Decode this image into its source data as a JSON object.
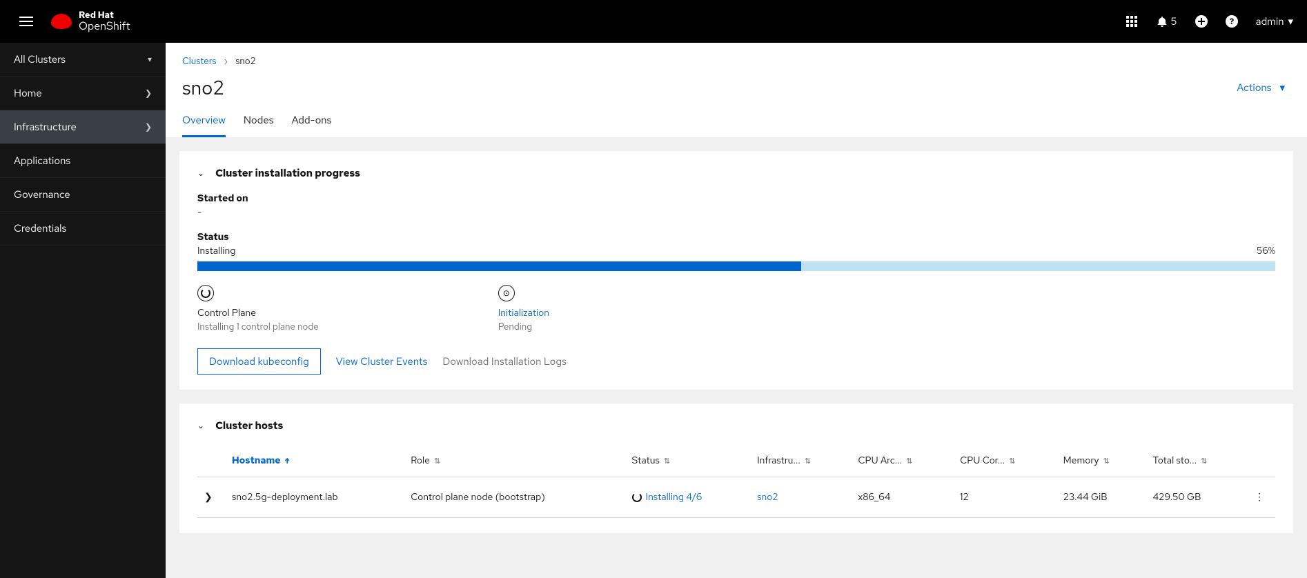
{
  "brand": {
    "line1": "Red Hat",
    "line2": "OpenShift"
  },
  "topbar": {
    "notification_count": "5",
    "user": "admin"
  },
  "sidebar": {
    "context": {
      "label": "All Clusters"
    },
    "items": [
      {
        "label": "Home",
        "expandable": true
      },
      {
        "label": "Infrastructure",
        "expandable": true,
        "active": true
      },
      {
        "label": "Applications"
      },
      {
        "label": "Governance"
      },
      {
        "label": "Credentials"
      }
    ]
  },
  "breadcrumb": {
    "parent": "Clusters",
    "current": "sno2"
  },
  "page": {
    "title": "sno2",
    "actions_label": "Actions"
  },
  "tabs": {
    "overview": "Overview",
    "nodes": "Nodes",
    "addons": "Add-ons"
  },
  "progress_card": {
    "title": "Cluster installation progress",
    "started_label": "Started on",
    "started_value": "-",
    "status_label": "Status",
    "status_value": "Installing",
    "percent": 56,
    "percent_label": "56%",
    "stages": {
      "control": {
        "name": "Control Plane",
        "sub": "Installing 1 control plane node"
      },
      "init": {
        "name": "Initialization",
        "sub": "Pending"
      }
    },
    "actions": {
      "kubeconfig": "Download kubeconfig",
      "events": "View Cluster Events",
      "logs": "Download Installation Logs"
    }
  },
  "hosts_card": {
    "title": "Cluster hosts",
    "columns": {
      "hostname": "Hostname",
      "role": "Role",
      "status": "Status",
      "infra": "Infrastru...",
      "cpu_arch": "CPU Arc...",
      "cpu_cores": "CPU Cor...",
      "memory": "Memory",
      "storage": "Total sto..."
    },
    "row": {
      "hostname": "sno2.5g-deployment.lab",
      "role": "Control plane node (bootstrap)",
      "status": "Installing 4/6",
      "infra": "sno2",
      "cpu_arch": "x86_64",
      "cpu_cores": "12",
      "memory": "23.44 GiB",
      "storage": "429.50 GB"
    }
  },
  "colors": {
    "accent": "#0066cc",
    "progress_bg": "#bee1f4",
    "sidebar_bg": "#151515",
    "sidebar_active": "#393f44",
    "muted": "#6a6e73",
    "page_bg": "#f0f0f0"
  }
}
